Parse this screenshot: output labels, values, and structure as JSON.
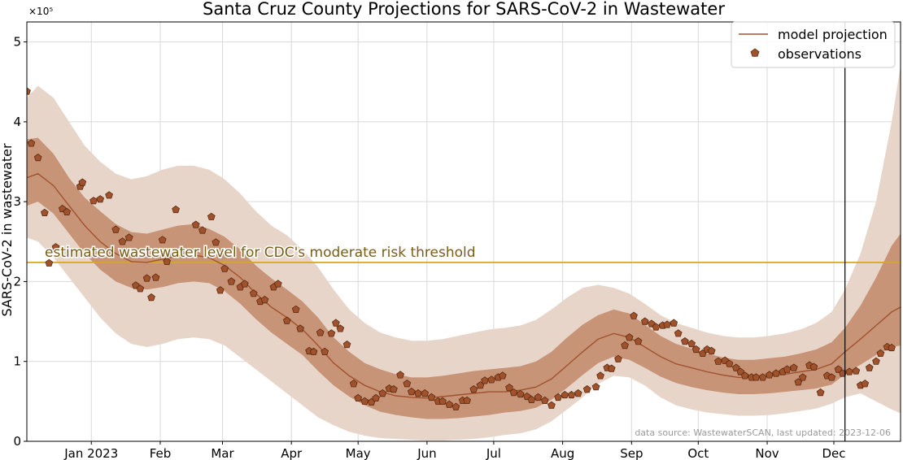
{
  "chart_data": {
    "type": "line",
    "title": "Santa Cruz County Projections for SARS-CoV-2 in Wastewater",
    "ylabel": "SARS-CoV-2 in wastewater",
    "y_multiplier": "×10⁵",
    "ylim": [
      0,
      5.25
    ],
    "y_ticks": [
      0,
      1,
      2,
      3,
      4,
      5
    ],
    "y_tick_labels": [
      "0",
      "1",
      "2",
      "3",
      "4",
      "5"
    ],
    "xlim": [
      "2022-12-03",
      "2023-12-31"
    ],
    "x_ticks": [
      "2023-01-01",
      "2023-02-01",
      "2023-03-01",
      "2023-04-01",
      "2023-05-01",
      "2023-06-01",
      "2023-07-01",
      "2023-08-01",
      "2023-09-01",
      "2023-10-01",
      "2023-11-01",
      "2023-12-01"
    ],
    "x_tick_labels": [
      "Jan 2023",
      "Feb",
      "Mar",
      "Apr",
      "May",
      "Jun",
      "Jul",
      "Aug",
      "Sep",
      "Oct",
      "Nov",
      "Dec"
    ],
    "grid": true,
    "legend_position": "top-right",
    "colors": {
      "line": "#a0522d",
      "marker_fill": "#a0522d",
      "marker_edge": "#5a2a10",
      "band_inner": "#c89478",
      "band_outer": "#e8d5ca",
      "threshold": "#d4a62a",
      "today_line": "#000000"
    },
    "threshold": {
      "value": 2.24,
      "label": "estimated wastewater level for CDC's moderate risk threshold"
    },
    "today_marker": "2023-12-06",
    "source_note": "data source: WastewaterSCAN, last updated: 2023-12-06",
    "series": [
      {
        "name": "model projection",
        "kind": "line",
        "dates": [
          "2022-12-03",
          "2022-12-08",
          "2022-12-15",
          "2022-12-22",
          "2022-12-29",
          "2023-01-05",
          "2023-01-12",
          "2023-01-19",
          "2023-01-26",
          "2023-02-02",
          "2023-02-09",
          "2023-02-16",
          "2023-02-23",
          "2023-03-02",
          "2023-03-09",
          "2023-03-16",
          "2023-03-23",
          "2023-03-30",
          "2023-04-06",
          "2023-04-13",
          "2023-04-20",
          "2023-04-27",
          "2023-05-04",
          "2023-05-11",
          "2023-05-18",
          "2023-05-25",
          "2023-06-01",
          "2023-06-08",
          "2023-06-15",
          "2023-06-22",
          "2023-06-29",
          "2023-07-06",
          "2023-07-13",
          "2023-07-20",
          "2023-07-27",
          "2023-08-03",
          "2023-08-10",
          "2023-08-17",
          "2023-08-24",
          "2023-08-31",
          "2023-09-07",
          "2023-09-14",
          "2023-09-21",
          "2023-09-28",
          "2023-10-05",
          "2023-10-12",
          "2023-10-19",
          "2023-10-26",
          "2023-11-02",
          "2023-11-09",
          "2023-11-16",
          "2023-11-23",
          "2023-11-30",
          "2023-12-06",
          "2023-12-13",
          "2023-12-20",
          "2023-12-27",
          "2023-12-31"
        ],
        "mean": [
          3.3,
          3.35,
          3.2,
          2.95,
          2.7,
          2.5,
          2.35,
          2.25,
          2.24,
          2.28,
          2.32,
          2.33,
          2.3,
          2.2,
          2.05,
          1.85,
          1.68,
          1.55,
          1.4,
          1.2,
          0.98,
          0.82,
          0.7,
          0.62,
          0.57,
          0.55,
          0.54,
          0.56,
          0.58,
          0.6,
          0.62,
          0.62,
          0.64,
          0.68,
          0.78,
          0.95,
          1.12,
          1.28,
          1.35,
          1.3,
          1.18,
          1.06,
          0.97,
          0.92,
          0.87,
          0.83,
          0.8,
          0.8,
          0.82,
          0.84,
          0.87,
          0.9,
          0.97,
          1.12,
          1.28,
          1.45,
          1.62,
          1.68
        ],
        "lower50": [
          2.95,
          3.0,
          2.85,
          2.6,
          2.35,
          2.15,
          2.0,
          1.92,
          1.9,
          1.93,
          1.98,
          2.0,
          1.98,
          1.88,
          1.72,
          1.53,
          1.36,
          1.22,
          1.08,
          0.88,
          0.7,
          0.56,
          0.45,
          0.37,
          0.33,
          0.3,
          0.28,
          0.28,
          0.29,
          0.31,
          0.33,
          0.36,
          0.38,
          0.42,
          0.52,
          0.67,
          0.83,
          0.98,
          1.06,
          1.02,
          0.92,
          0.81,
          0.73,
          0.68,
          0.64,
          0.61,
          0.59,
          0.59,
          0.6,
          0.62,
          0.64,
          0.66,
          0.71,
          0.84,
          0.96,
          1.08,
          1.18,
          1.2
        ],
        "upper50": [
          3.78,
          3.8,
          3.6,
          3.3,
          3.05,
          2.88,
          2.72,
          2.62,
          2.6,
          2.65,
          2.7,
          2.72,
          2.66,
          2.56,
          2.4,
          2.2,
          2.04,
          1.9,
          1.75,
          1.55,
          1.3,
          1.12,
          0.98,
          0.9,
          0.84,
          0.8,
          0.8,
          0.82,
          0.85,
          0.88,
          0.9,
          0.92,
          0.94,
          1.0,
          1.12,
          1.3,
          1.46,
          1.58,
          1.65,
          1.6,
          1.46,
          1.32,
          1.22,
          1.16,
          1.1,
          1.05,
          1.02,
          1.02,
          1.04,
          1.06,
          1.1,
          1.15,
          1.24,
          1.42,
          1.7,
          2.05,
          2.45,
          2.6
        ],
        "lower95": [
          2.55,
          2.5,
          2.3,
          2.05,
          1.8,
          1.55,
          1.35,
          1.22,
          1.18,
          1.22,
          1.28,
          1.3,
          1.28,
          1.2,
          1.05,
          0.9,
          0.75,
          0.6,
          0.45,
          0.3,
          0.2,
          0.12,
          0.07,
          0.04,
          0.03,
          0.02,
          0.01,
          0.01,
          0.02,
          0.03,
          0.05,
          0.08,
          0.1,
          0.15,
          0.25,
          0.4,
          0.55,
          0.72,
          0.82,
          0.8,
          0.7,
          0.55,
          0.45,
          0.4,
          0.36,
          0.34,
          0.32,
          0.32,
          0.33,
          0.35,
          0.38,
          0.41,
          0.47,
          0.55,
          0.6,
          0.5,
          0.4,
          0.35
        ],
        "upper95": [
          4.3,
          4.45,
          4.3,
          4.0,
          3.7,
          3.5,
          3.35,
          3.28,
          3.32,
          3.4,
          3.45,
          3.45,
          3.4,
          3.28,
          3.1,
          2.88,
          2.7,
          2.58,
          2.4,
          2.18,
          1.9,
          1.65,
          1.48,
          1.36,
          1.3,
          1.26,
          1.26,
          1.28,
          1.32,
          1.36,
          1.4,
          1.42,
          1.45,
          1.52,
          1.65,
          1.8,
          1.92,
          1.96,
          1.92,
          1.85,
          1.72,
          1.58,
          1.48,
          1.42,
          1.36,
          1.32,
          1.3,
          1.3,
          1.32,
          1.35,
          1.4,
          1.48,
          1.62,
          1.9,
          2.35,
          3.0,
          4.0,
          4.7
        ]
      },
      {
        "name": "observations",
        "kind": "scatter",
        "points": [
          [
            "2022-12-03",
            4.38
          ],
          [
            "2022-12-05",
            3.73
          ],
          [
            "2022-12-08",
            3.55
          ],
          [
            "2022-12-11",
            2.86
          ],
          [
            "2022-12-13",
            2.23
          ],
          [
            "2022-12-16",
            2.43
          ],
          [
            "2022-12-19",
            2.91
          ],
          [
            "2022-12-21",
            2.87
          ],
          [
            "2022-12-27",
            3.19
          ],
          [
            "2022-12-28",
            3.24
          ],
          [
            "2023-01-02",
            3.01
          ],
          [
            "2023-01-05",
            3.03
          ],
          [
            "2023-01-09",
            3.08
          ],
          [
            "2023-01-12",
            2.65
          ],
          [
            "2023-01-15",
            2.5
          ],
          [
            "2023-01-18",
            2.55
          ],
          [
            "2023-01-21",
            1.95
          ],
          [
            "2023-01-23",
            1.91
          ],
          [
            "2023-01-26",
            2.04
          ],
          [
            "2023-01-28",
            1.8
          ],
          [
            "2023-01-30",
            2.05
          ],
          [
            "2023-02-02",
            2.52
          ],
          [
            "2023-02-04",
            2.25
          ],
          [
            "2023-02-08",
            2.9
          ],
          [
            "2023-02-17",
            2.71
          ],
          [
            "2023-02-20",
            2.64
          ],
          [
            "2023-02-24",
            2.81
          ],
          [
            "2023-02-26",
            2.49
          ],
          [
            "2023-02-28",
            1.89
          ],
          [
            "2023-03-02",
            2.16
          ],
          [
            "2023-03-05",
            2.0
          ],
          [
            "2023-03-09",
            1.93
          ],
          [
            "2023-03-11",
            1.97
          ],
          [
            "2023-03-15",
            1.85
          ],
          [
            "2023-03-18",
            1.75
          ],
          [
            "2023-03-20",
            1.77
          ],
          [
            "2023-03-24",
            1.93
          ],
          [
            "2023-03-26",
            1.97
          ],
          [
            "2023-03-30",
            1.51
          ],
          [
            "2023-04-03",
            1.65
          ],
          [
            "2023-04-05",
            1.41
          ],
          [
            "2023-04-09",
            1.13
          ],
          [
            "2023-04-11",
            1.12
          ],
          [
            "2023-04-14",
            1.36
          ],
          [
            "2023-04-16",
            1.12
          ],
          [
            "2023-04-19",
            1.35
          ],
          [
            "2023-04-21",
            1.48
          ],
          [
            "2023-04-23",
            1.41
          ],
          [
            "2023-04-26",
            1.21
          ],
          [
            "2023-04-29",
            0.72
          ],
          [
            "2023-05-01",
            0.54
          ],
          [
            "2023-05-04",
            0.5
          ],
          [
            "2023-05-07",
            0.49
          ],
          [
            "2023-05-09",
            0.54
          ],
          [
            "2023-05-12",
            0.6
          ],
          [
            "2023-05-15",
            0.66
          ],
          [
            "2023-05-17",
            0.65
          ],
          [
            "2023-05-20",
            0.83
          ],
          [
            "2023-05-23",
            0.72
          ],
          [
            "2023-05-25",
            0.62
          ],
          [
            "2023-05-28",
            0.6
          ],
          [
            "2023-05-31",
            0.6
          ],
          [
            "2023-06-03",
            0.55
          ],
          [
            "2023-06-06",
            0.5
          ],
          [
            "2023-06-08",
            0.5
          ],
          [
            "2023-06-11",
            0.46
          ],
          [
            "2023-06-14",
            0.43
          ],
          [
            "2023-06-17",
            0.51
          ],
          [
            "2023-06-19",
            0.51
          ],
          [
            "2023-06-22",
            0.65
          ],
          [
            "2023-06-25",
            0.7
          ],
          [
            "2023-06-27",
            0.76
          ],
          [
            "2023-06-30",
            0.77
          ],
          [
            "2023-07-03",
            0.8
          ],
          [
            "2023-07-05",
            0.82
          ],
          [
            "2023-07-08",
            0.67
          ],
          [
            "2023-07-10",
            0.61
          ],
          [
            "2023-07-13",
            0.59
          ],
          [
            "2023-07-16",
            0.56
          ],
          [
            "2023-07-18",
            0.52
          ],
          [
            "2023-07-21",
            0.55
          ],
          [
            "2023-07-24",
            0.51
          ],
          [
            "2023-07-27",
            0.45
          ],
          [
            "2023-07-30",
            0.55
          ],
          [
            "2023-08-02",
            0.58
          ],
          [
            "2023-08-05",
            0.58
          ],
          [
            "2023-08-08",
            0.6
          ],
          [
            "2023-08-12",
            0.65
          ],
          [
            "2023-08-16",
            0.68
          ],
          [
            "2023-08-18",
            0.82
          ],
          [
            "2023-08-21",
            0.92
          ],
          [
            "2023-08-23",
            0.91
          ],
          [
            "2023-08-26",
            1.03
          ],
          [
            "2023-08-29",
            1.2
          ],
          [
            "2023-08-31",
            1.3
          ],
          [
            "2023-09-02",
            1.57
          ],
          [
            "2023-09-04",
            1.25
          ],
          [
            "2023-09-07",
            1.5
          ],
          [
            "2023-09-10",
            1.47
          ],
          [
            "2023-09-12",
            1.43
          ],
          [
            "2023-09-15",
            1.45
          ],
          [
            "2023-09-17",
            1.46
          ],
          [
            "2023-09-20",
            1.48
          ],
          [
            "2023-09-22",
            1.35
          ],
          [
            "2023-09-25",
            1.25
          ],
          [
            "2023-09-28",
            1.22
          ],
          [
            "2023-09-30",
            1.15
          ],
          [
            "2023-10-03",
            1.1
          ],
          [
            "2023-10-05",
            1.15
          ],
          [
            "2023-10-07",
            1.13
          ],
          [
            "2023-10-10",
            1.0
          ],
          [
            "2023-10-13",
            1.01
          ],
          [
            "2023-10-15",
            0.97
          ],
          [
            "2023-10-18",
            0.92
          ],
          [
            "2023-10-20",
            0.87
          ],
          [
            "2023-10-22",
            0.82
          ],
          [
            "2023-10-25",
            0.8
          ],
          [
            "2023-10-27",
            0.8
          ],
          [
            "2023-10-30",
            0.8
          ],
          [
            "2023-11-02",
            0.83
          ],
          [
            "2023-11-05",
            0.85
          ],
          [
            "2023-11-08",
            0.87
          ],
          [
            "2023-11-10",
            0.9
          ],
          [
            "2023-11-13",
            0.92
          ],
          [
            "2023-11-15",
            0.74
          ],
          [
            "2023-11-17",
            0.8
          ],
          [
            "2023-11-20",
            0.95
          ],
          [
            "2023-11-22",
            0.93
          ],
          [
            "2023-11-25",
            0.61
          ],
          [
            "2023-11-28",
            0.82
          ],
          [
            "2023-11-30",
            0.8
          ],
          [
            "2023-12-03",
            0.9
          ],
          [
            "2023-12-05",
            0.85
          ],
          [
            "2023-12-08",
            0.87
          ],
          [
            "2023-12-11",
            0.88
          ],
          [
            "2023-12-13",
            0.7
          ],
          [
            "2023-12-15",
            0.72
          ],
          [
            "2023-12-17",
            0.92
          ],
          [
            "2023-12-20",
            1.0
          ],
          [
            "2023-12-22",
            1.1
          ],
          [
            "2023-12-25",
            1.18
          ],
          [
            "2023-12-27",
            1.17
          ]
        ]
      }
    ]
  }
}
